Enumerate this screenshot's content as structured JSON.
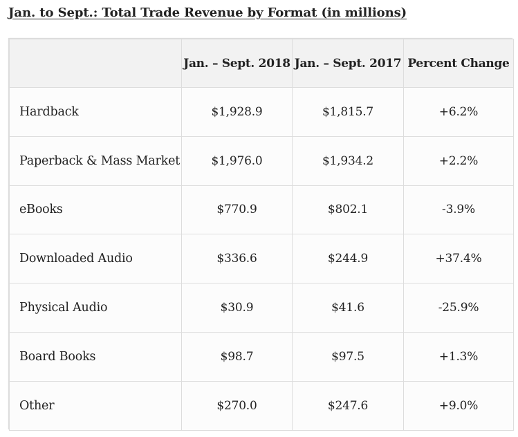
{
  "title": "Jan. to Sept.: Total Trade Revenue by Format (in millions)",
  "chart_data": {
    "type": "table",
    "title": "Jan. to Sept.: Total Trade Revenue by Format (in millions)",
    "columns": [
      "",
      "Jan. – Sept. 2018",
      "Jan. – Sept. 2017",
      "Percent Change"
    ],
    "rows": [
      {
        "format": "Hardback",
        "y2018": "$1,928.9",
        "y2017": "$1,815.7",
        "change": "+6.2%"
      },
      {
        "format": "Paperback & Mass Market",
        "y2018": "$1,976.0",
        "y2017": "$1,934.2",
        "change": "+2.2%"
      },
      {
        "format": "eBooks",
        "y2018": "$770.9",
        "y2017": "$802.1",
        "change": "-3.9%"
      },
      {
        "format": "Downloaded Audio",
        "y2018": "$336.6",
        "y2017": "$244.9",
        "change": "+37.4%"
      },
      {
        "format": "Physical Audio",
        "y2018": "$30.9",
        "y2017": "$41.6",
        "change": "-25.9%"
      },
      {
        "format": "Board Books",
        "y2018": "$98.7",
        "y2017": "$97.5",
        "change": "+1.3%"
      },
      {
        "format": "Other",
        "y2018": "$270.0",
        "y2017": "$247.6",
        "change": "+9.0%"
      }
    ]
  }
}
